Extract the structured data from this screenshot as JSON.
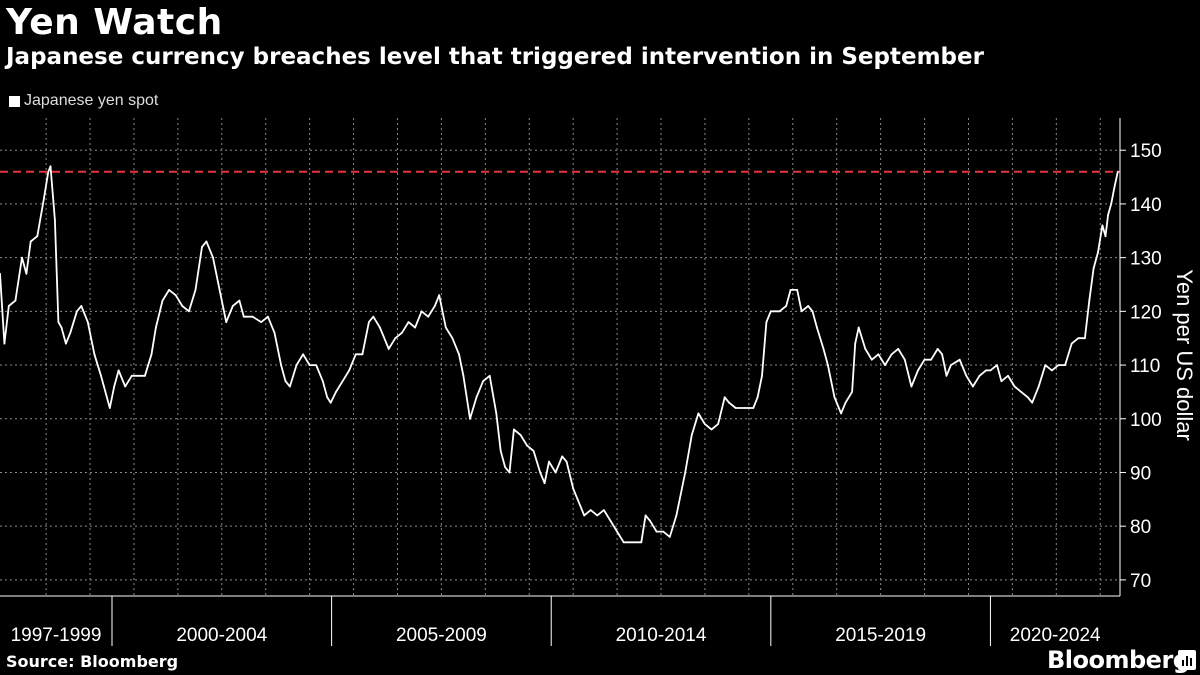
{
  "header": {
    "title": "Yen Watch",
    "subtitle": "Japanese currency breaches level that triggered intervention in September"
  },
  "legend": {
    "label": "Japanese yen spot",
    "color": "#ffffff"
  },
  "footer": {
    "source": "Source: Bloomberg",
    "brand": "Bloomberg"
  },
  "colors": {
    "background": "#000000",
    "line": "#ffffff",
    "reference_line": "#e8343f",
    "grid": "#8a8a8a"
  },
  "chart_data": {
    "type": "line",
    "title": "Yen Watch",
    "ylabel": "Yen per US dollar",
    "ylim": [
      67,
      156
    ],
    "yticks": [
      70,
      80,
      90,
      100,
      110,
      120,
      130,
      140,
      150
    ],
    "xlim": [
      1997.45,
      2022.95
    ],
    "x_groups": [
      {
        "label": "1997-1999",
        "start": 1997.45,
        "end": 2000.0
      },
      {
        "label": "2000-2004",
        "start": 2000.0,
        "end": 2005.0
      },
      {
        "label": "2005-2009",
        "start": 2005.0,
        "end": 2010.0
      },
      {
        "label": "2010-2014",
        "start": 2010.0,
        "end": 2015.0
      },
      {
        "label": "2015-2019",
        "start": 2015.0,
        "end": 2020.0
      },
      {
        "label": "2020-2024",
        "start": 2020.0,
        "end": 2022.95
      }
    ],
    "reference_line": {
      "value": 146
    },
    "grid": true,
    "series": [
      {
        "name": "Japanese yen spot",
        "points": [
          [
            1997.45,
            127
          ],
          [
            1997.55,
            114
          ],
          [
            1997.65,
            121
          ],
          [
            1997.8,
            122
          ],
          [
            1997.95,
            130
          ],
          [
            1998.05,
            127
          ],
          [
            1998.15,
            133
          ],
          [
            1998.3,
            134
          ],
          [
            1998.45,
            141
          ],
          [
            1998.55,
            146
          ],
          [
            1998.6,
            147
          ],
          [
            1998.7,
            137
          ],
          [
            1998.78,
            118
          ],
          [
            1998.85,
            117
          ],
          [
            1998.95,
            114
          ],
          [
            1999.05,
            116
          ],
          [
            1999.2,
            120
          ],
          [
            1999.3,
            121
          ],
          [
            1999.45,
            118
          ],
          [
            1999.6,
            112
          ],
          [
            1999.75,
            108
          ],
          [
            1999.85,
            105
          ],
          [
            1999.95,
            102
          ],
          [
            2000.05,
            106
          ],
          [
            2000.15,
            109
          ],
          [
            2000.3,
            106
          ],
          [
            2000.45,
            108
          ],
          [
            2000.6,
            108
          ],
          [
            2000.75,
            108
          ],
          [
            2000.9,
            112
          ],
          [
            2001.0,
            117
          ],
          [
            2001.15,
            122
          ],
          [
            2001.3,
            124
          ],
          [
            2001.45,
            123
          ],
          [
            2001.6,
            121
          ],
          [
            2001.75,
            120
          ],
          [
            2001.9,
            124
          ],
          [
            2002.05,
            132
          ],
          [
            2002.15,
            133
          ],
          [
            2002.3,
            130
          ],
          [
            2002.45,
            124
          ],
          [
            2002.6,
            118
          ],
          [
            2002.75,
            121
          ],
          [
            2002.9,
            122
          ],
          [
            2003.0,
            119
          ],
          [
            2003.2,
            119
          ],
          [
            2003.4,
            118
          ],
          [
            2003.55,
            119
          ],
          [
            2003.7,
            116
          ],
          [
            2003.85,
            110
          ],
          [
            2003.95,
            107
          ],
          [
            2004.05,
            106
          ],
          [
            2004.2,
            110
          ],
          [
            2004.35,
            112
          ],
          [
            2004.5,
            110
          ],
          [
            2004.65,
            110
          ],
          [
            2004.8,
            107
          ],
          [
            2004.9,
            104
          ],
          [
            2004.98,
            103
          ],
          [
            2005.1,
            105
          ],
          [
            2005.25,
            107
          ],
          [
            2005.4,
            109
          ],
          [
            2005.55,
            112
          ],
          [
            2005.7,
            112
          ],
          [
            2005.85,
            118
          ],
          [
            2005.95,
            119
          ],
          [
            2006.1,
            117
          ],
          [
            2006.3,
            113
          ],
          [
            2006.45,
            115
          ],
          [
            2006.6,
            116
          ],
          [
            2006.75,
            118
          ],
          [
            2006.9,
            117
          ],
          [
            2007.05,
            120
          ],
          [
            2007.2,
            119
          ],
          [
            2007.35,
            121
          ],
          [
            2007.45,
            123
          ],
          [
            2007.6,
            117
          ],
          [
            2007.75,
            115
          ],
          [
            2007.9,
            112
          ],
          [
            2008.0,
            108
          ],
          [
            2008.15,
            100
          ],
          [
            2008.3,
            104
          ],
          [
            2008.45,
            107
          ],
          [
            2008.6,
            108
          ],
          [
            2008.75,
            101
          ],
          [
            2008.85,
            94
          ],
          [
            2008.95,
            91
          ],
          [
            2009.05,
            90
          ],
          [
            2009.15,
            98
          ],
          [
            2009.3,
            97
          ],
          [
            2009.45,
            95
          ],
          [
            2009.6,
            94
          ],
          [
            2009.75,
            90
          ],
          [
            2009.85,
            88
          ],
          [
            2009.95,
            92
          ],
          [
            2010.1,
            90
          ],
          [
            2010.25,
            93
          ],
          [
            2010.35,
            92
          ],
          [
            2010.5,
            87
          ],
          [
            2010.6,
            85
          ],
          [
            2010.75,
            82
          ],
          [
            2010.9,
            83
          ],
          [
            2011.05,
            82
          ],
          [
            2011.2,
            83
          ],
          [
            2011.35,
            81
          ],
          [
            2011.5,
            79
          ],
          [
            2011.65,
            77
          ],
          [
            2011.8,
            77
          ],
          [
            2011.95,
            77
          ],
          [
            2012.05,
            77
          ],
          [
            2012.15,
            82
          ],
          [
            2012.25,
            81
          ],
          [
            2012.4,
            79
          ],
          [
            2012.55,
            79
          ],
          [
            2012.7,
            78
          ],
          [
            2012.85,
            82
          ],
          [
            2012.95,
            86
          ],
          [
            2013.05,
            90
          ],
          [
            2013.2,
            97
          ],
          [
            2013.35,
            101
          ],
          [
            2013.5,
            99
          ],
          [
            2013.65,
            98
          ],
          [
            2013.8,
            99
          ],
          [
            2013.95,
            104
          ],
          [
            2014.05,
            103
          ],
          [
            2014.2,
            102
          ],
          [
            2014.4,
            102
          ],
          [
            2014.6,
            102
          ],
          [
            2014.7,
            104
          ],
          [
            2014.8,
            108
          ],
          [
            2014.9,
            118
          ],
          [
            2015.0,
            120
          ],
          [
            2015.2,
            120
          ],
          [
            2015.35,
            121
          ],
          [
            2015.45,
            124
          ],
          [
            2015.6,
            124
          ],
          [
            2015.7,
            120
          ],
          [
            2015.85,
            121
          ],
          [
            2015.95,
            120
          ],
          [
            2016.05,
            117
          ],
          [
            2016.2,
            113
          ],
          [
            2016.3,
            110
          ],
          [
            2016.45,
            104
          ],
          [
            2016.6,
            101
          ],
          [
            2016.7,
            103
          ],
          [
            2016.85,
            105
          ],
          [
            2016.92,
            114
          ],
          [
            2017.0,
            117
          ],
          [
            2017.15,
            113
          ],
          [
            2017.3,
            111
          ],
          [
            2017.45,
            112
          ],
          [
            2017.6,
            110
          ],
          [
            2017.75,
            112
          ],
          [
            2017.9,
            113
          ],
          [
            2018.05,
            111
          ],
          [
            2018.2,
            106
          ],
          [
            2018.35,
            109
          ],
          [
            2018.5,
            111
          ],
          [
            2018.65,
            111
          ],
          [
            2018.8,
            113
          ],
          [
            2018.9,
            112
          ],
          [
            2019.0,
            108
          ],
          [
            2019.1,
            110
          ],
          [
            2019.3,
            111
          ],
          [
            2019.45,
            108
          ],
          [
            2019.6,
            106
          ],
          [
            2019.75,
            108
          ],
          [
            2019.9,
            109
          ],
          [
            2020.0,
            109
          ],
          [
            2020.15,
            110
          ],
          [
            2020.25,
            107
          ],
          [
            2020.4,
            108
          ],
          [
            2020.55,
            106
          ],
          [
            2020.7,
            105
          ],
          [
            2020.85,
            104
          ],
          [
            2020.95,
            103
          ],
          [
            2021.1,
            106
          ],
          [
            2021.25,
            110
          ],
          [
            2021.4,
            109
          ],
          [
            2021.55,
            110
          ],
          [
            2021.7,
            110
          ],
          [
            2021.85,
            114
          ],
          [
            2022.0,
            115
          ],
          [
            2022.15,
            115
          ],
          [
            2022.25,
            122
          ],
          [
            2022.35,
            128
          ],
          [
            2022.45,
            131
          ],
          [
            2022.55,
            136
          ],
          [
            2022.62,
            134
          ],
          [
            2022.68,
            138
          ],
          [
            2022.75,
            140
          ],
          [
            2022.82,
            143
          ],
          [
            2022.9,
            146
          ]
        ]
      }
    ]
  }
}
